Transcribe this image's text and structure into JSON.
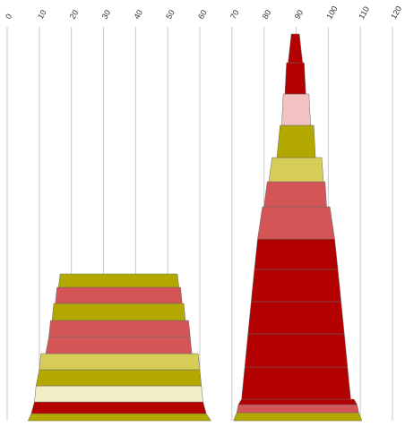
{
  "chart_data": {
    "type": "bar",
    "orientation": "stacked-trapezoid-towers",
    "x_axis": {
      "min": 0,
      "max": 120,
      "ticks": [
        0,
        10,
        20,
        30,
        40,
        50,
        60,
        70,
        80,
        90,
        100,
        110,
        120
      ],
      "tick_labels": [
        "0",
        "10",
        "20",
        "30",
        "40",
        "50",
        "60",
        "70",
        "80",
        "90",
        "100",
        "110",
        "120"
      ],
      "position": "top",
      "label_rotation": -60
    },
    "grid": true,
    "colors": {
      "dark_red": "#b30000",
      "coral": "#d45555",
      "pink": "#f2c2c2",
      "olive": "#b3a800",
      "yellow": "#d5cd55",
      "cream": "#f2edc5"
    },
    "towers": [
      {
        "segments": [
          {
            "bottom": [
              6.5,
              63.5
            ],
            "top": [
              7.5,
              62
            ],
            "color": "olive"
          },
          {
            "bottom": [
              7.5,
              62
            ],
            "top": [
              8.5,
              61
            ],
            "color": "dark_red"
          },
          {
            "bottom": [
              8.5,
              61
            ],
            "top": [
              9,
              60.5
            ],
            "color": "cream"
          },
          {
            "bottom": [
              9,
              60.5
            ],
            "top": [
              10,
              60
            ],
            "color": "olive"
          },
          {
            "bottom": [
              10,
              60
            ],
            "top": [
              10.5,
              59.5
            ],
            "color": "yellow"
          },
          {
            "bottom": [
              12,
              57.5
            ],
            "top": [
              13,
              57
            ],
            "color": "coral"
          },
          {
            "bottom": [
              13,
              57
            ],
            "top": [
              13.5,
              56.5
            ],
            "color": "coral"
          },
          {
            "bottom": [
              14,
              55.5
            ],
            "top": [
              14.5,
              55
            ],
            "color": "olive"
          },
          {
            "bottom": [
              15,
              54.5
            ],
            "top": [
              15.5,
              54
            ],
            "color": "coral"
          },
          {
            "bottom": [
              16,
              53.5
            ],
            "top": [
              16.5,
              53
            ],
            "color": "olive"
          }
        ]
      },
      {
        "segments": [
          {
            "bottom": [
              70.5,
              110.5
            ],
            "top": [
              71.5,
              109.5
            ],
            "color": "olive"
          },
          {
            "bottom": [
              71.5,
              109.5
            ],
            "top": [
              72,
              109
            ],
            "color": "coral"
          },
          {
            "bottom": [
              72,
              109
            ],
            "top": [
              73,
              108
            ],
            "color": "dark_red"
          },
          {
            "bottom": [
              73,
              107
            ],
            "top": [
              74,
              106
            ],
            "color": "dark_red"
          },
          {
            "bottom": [
              74,
              106
            ],
            "top": [
              75,
              105
            ],
            "color": "dark_red"
          },
          {
            "bottom": [
              75,
              105
            ],
            "top": [
              76,
              104
            ],
            "color": "dark_red"
          },
          {
            "bottom": [
              76,
              104
            ],
            "top": [
              77,
              103
            ],
            "color": "dark_red"
          },
          {
            "bottom": [
              77,
              103
            ],
            "top": [
              78,
              102
            ],
            "color": "dark_red"
          },
          {
            "bottom": [
              78,
              102
            ],
            "top": [
              79.5,
              100.5
            ],
            "color": "coral"
          },
          {
            "bottom": [
              80,
              99.5
            ],
            "top": [
              81,
              99
            ],
            "color": "coral"
          },
          {
            "bottom": [
              81.5,
              98.5
            ],
            "top": [
              82.5,
              98
            ],
            "color": "yellow"
          },
          {
            "bottom": [
              84,
              96
            ],
            "top": [
              85,
              95.5
            ],
            "color": "olive"
          },
          {
            "bottom": [
              85.5,
              94.5
            ],
            "top": [
              86,
              94
            ],
            "color": "pink"
          },
          {
            "bottom": [
              86.5,
              93
            ],
            "top": [
              87,
              92.5
            ],
            "color": "dark_red"
          },
          {
            "bottom": [
              87.5,
              92
            ],
            "top": [
              88.5,
              91
            ],
            "color": "dark_red"
          }
        ]
      }
    ]
  }
}
